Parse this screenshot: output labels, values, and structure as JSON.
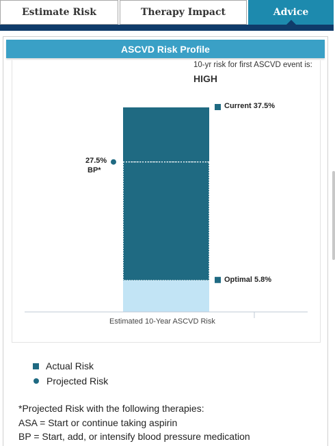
{
  "tabs": [
    {
      "label": "Estimate Risk",
      "active": false
    },
    {
      "label": "Therapy Impact",
      "active": false
    },
    {
      "label": "Advice",
      "active": true
    }
  ],
  "panel": {
    "title": "ASCVD Risk Profile"
  },
  "risk": {
    "caption": "10-yr risk for first ASCVD event is:",
    "level": "HIGH"
  },
  "chart_data": {
    "type": "bar",
    "xlabel": "Estimated 10-Year ASCVD Risk",
    "ylabel": "",
    "ylim": [
      0,
      37.5
    ],
    "current": {
      "value": 37.5,
      "label": "Current 37.5%"
    },
    "optimal": {
      "value": 5.8,
      "label": "Optimal 5.8%"
    },
    "projected": [
      {
        "value": 27.5,
        "value_label": "27.5%",
        "therapy": "BP*"
      }
    ],
    "colors": {
      "actual": "#1f6a82",
      "optimal": "#c2e4f5",
      "axis": "#bfc9d6"
    }
  },
  "legend": {
    "actual": "Actual Risk",
    "projected": "Projected Risk"
  },
  "footnote": {
    "intro": "*Projected Risk with the following therapies:",
    "lines": [
      "ASA = Start or continue taking aspirin",
      "BP = Start, add, or intensify blood pressure medication"
    ]
  }
}
